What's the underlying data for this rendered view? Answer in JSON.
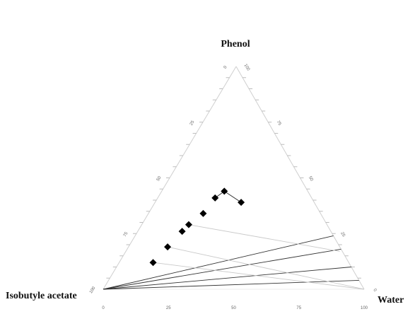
{
  "chart_data": {
    "type": "scatter",
    "subtype": "ternary",
    "title": "",
    "vertices": {
      "top": "Phenol",
      "left": "Isobutyle acetate",
      "right": "Water"
    },
    "axis_tick_labels": {
      "left_edge": [
        "0",
        "25",
        "50",
        "75",
        "100"
      ],
      "right_edge": [
        "100",
        "75",
        "50",
        "25",
        "0"
      ],
      "bottom_edge": [
        "0",
        "25",
        "50",
        "75",
        "100"
      ]
    },
    "binodal_points": [
      {
        "phenol": 12,
        "water": 13
      },
      {
        "phenol": 19,
        "water": 15
      },
      {
        "phenol": 26,
        "water": 17
      },
      {
        "phenol": 29,
        "water": 18
      },
      {
        "phenol": 34,
        "water": 21
      },
      {
        "phenol": 41,
        "water": 22
      },
      {
        "phenol": 44,
        "water": 24
      },
      {
        "phenol": 39,
        "water": 33
      }
    ],
    "tie_lines": [
      {
        "from": {
          "phenol": 0,
          "water": 0
        },
        "to": {
          "phenol": 24,
          "water": 76
        },
        "style": "dark"
      },
      {
        "from": {
          "phenol": 0,
          "water": 0
        },
        "to": {
          "phenol": 18,
          "water": 82
        },
        "style": "dark"
      },
      {
        "from": {
          "phenol": 0,
          "water": 0
        },
        "to": {
          "phenol": 10,
          "water": 90
        },
        "style": "dark"
      },
      {
        "from": {
          "phenol": 0,
          "water": 0
        },
        "to": {
          "phenol": 4,
          "water": 96
        },
        "style": "dark"
      },
      {
        "from": {
          "phenol": 12,
          "water": 13
        },
        "to": {
          "phenol": 0,
          "water": 100
        },
        "style": "light"
      },
      {
        "from": {
          "phenol": 19,
          "water": 15
        },
        "to": {
          "phenol": 0,
          "water": 100
        },
        "style": "light"
      },
      {
        "from": {
          "phenol": 29,
          "water": 18
        },
        "to": {
          "phenol": 17,
          "water": 82
        },
        "style": "light"
      }
    ],
    "grid": false
  }
}
